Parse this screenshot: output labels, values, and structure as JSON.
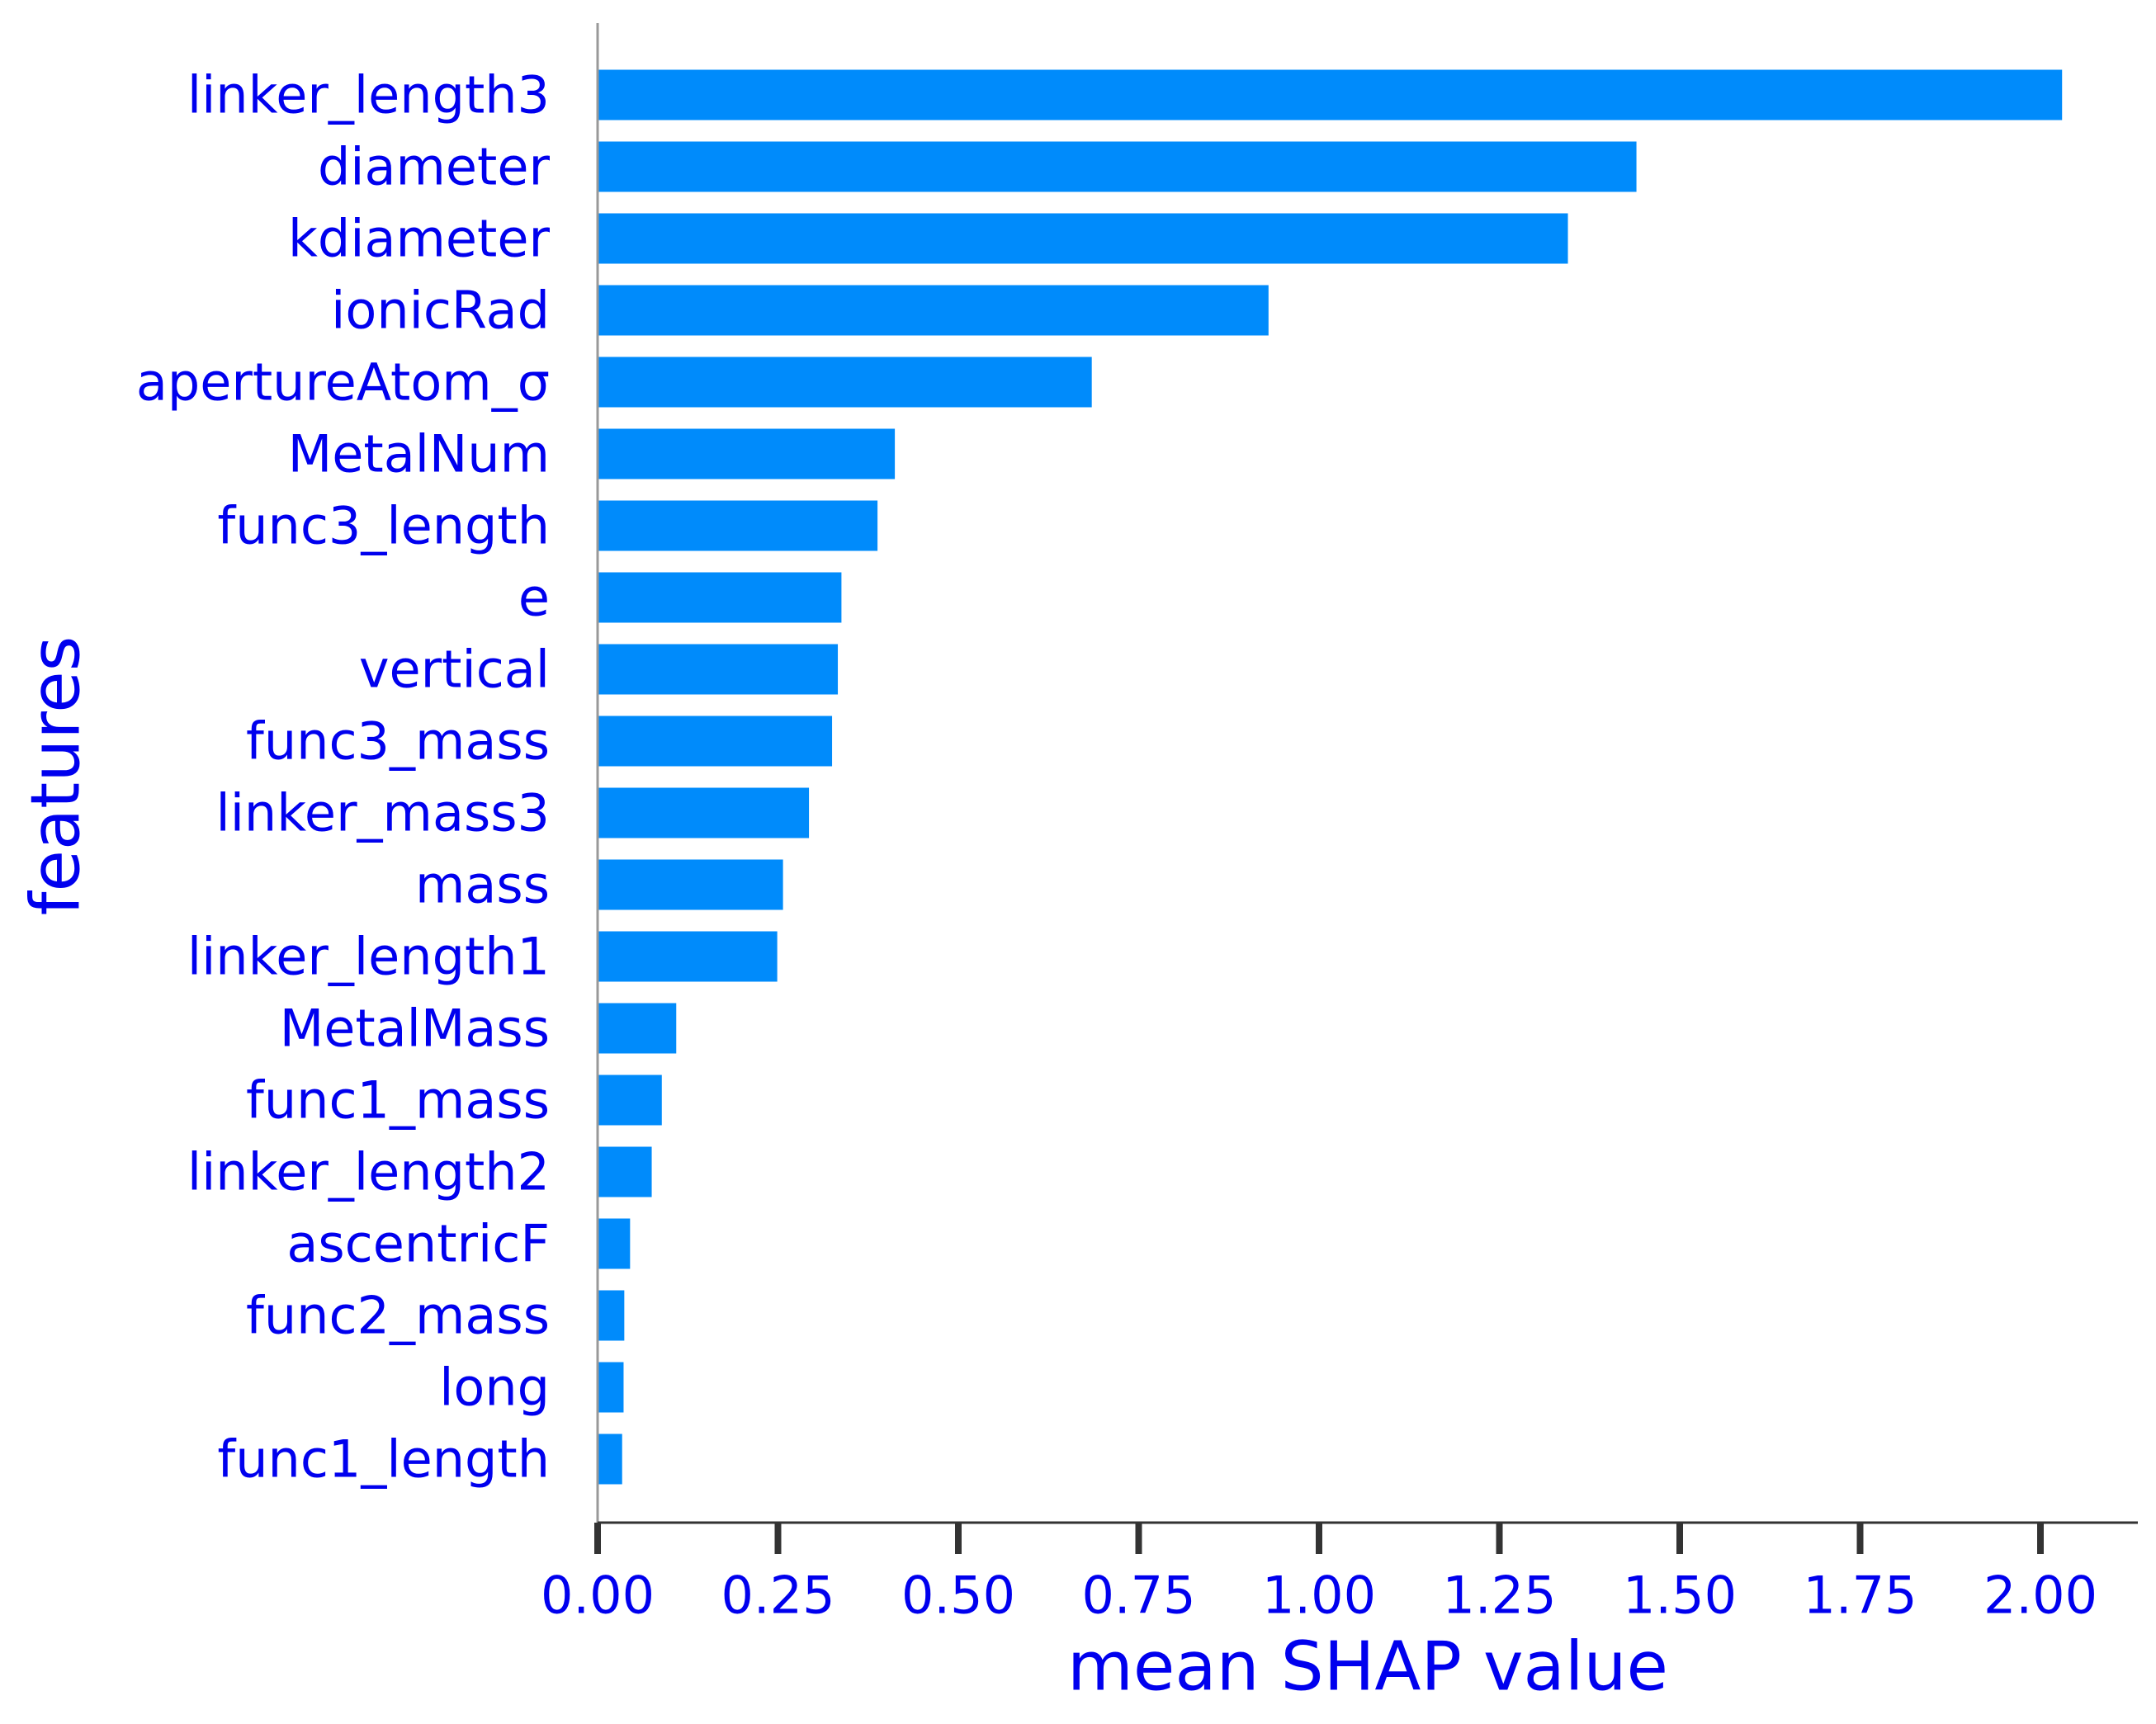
{
  "colors": {
    "bar": "#008bfb",
    "text": "#0000ee",
    "axis": "#333333",
    "left_spine": "#999999"
  },
  "chart_data": {
    "type": "bar",
    "orientation": "horizontal",
    "xlabel": "mean SHAP value",
    "ylabel": "features",
    "xlim": [
      0,
      2.13
    ],
    "xticks": [
      "0.00",
      "0.25",
      "0.50",
      "0.75",
      "1.00",
      "1.25",
      "1.50",
      "1.75",
      "2.00"
    ],
    "grid": false,
    "categories": [
      "linker_length3",
      "diameter",
      "kdiameter",
      "ionicRad",
      "apertureAtom_σ",
      "MetalNum",
      "func3_length",
      "e",
      "vertical",
      "func3_mass",
      "linker_mass3",
      "mass",
      "linker_length1",
      "MetalMass",
      "func1_mass",
      "linker_length2",
      "ascentricF",
      "func2_mass",
      "long",
      "func1_length"
    ],
    "values": [
      2.03,
      1.44,
      1.345,
      0.93,
      0.685,
      0.412,
      0.388,
      0.338,
      0.333,
      0.325,
      0.293,
      0.257,
      0.249,
      0.109,
      0.089,
      0.075,
      0.045,
      0.037,
      0.036,
      0.034
    ]
  }
}
